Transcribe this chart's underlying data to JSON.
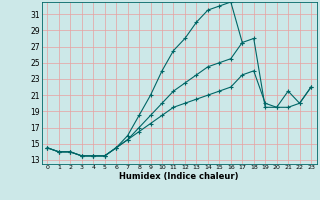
{
  "xlabel": "Humidex (Indice chaleur)",
  "bg_color": "#cce8e8",
  "grid_color": "#e8a0a0",
  "line_color": "#006666",
  "xlim": [
    -0.5,
    23.5
  ],
  "ylim": [
    12.5,
    32.5
  ],
  "yticks": [
    13,
    15,
    17,
    19,
    21,
    23,
    25,
    27,
    29,
    31
  ],
  "xticks": [
    0,
    1,
    2,
    3,
    4,
    5,
    6,
    7,
    8,
    9,
    10,
    11,
    12,
    13,
    14,
    15,
    16,
    17,
    18,
    19,
    20,
    21,
    22,
    23
  ],
  "line1_x": [
    0,
    1,
    2,
    3,
    4,
    5,
    6,
    7,
    8,
    9,
    10,
    11,
    12,
    13,
    14,
    15,
    16,
    17
  ],
  "line1_y": [
    14.5,
    14.0,
    14.0,
    13.5,
    13.5,
    13.5,
    14.5,
    16.0,
    18.5,
    21.0,
    24.0,
    26.5,
    28.0,
    30.0,
    31.5,
    32.0,
    32.5,
    27.5
  ],
  "line2_x": [
    0,
    1,
    2,
    3,
    4,
    5,
    6,
    7,
    8,
    9,
    10,
    11,
    12,
    13,
    14,
    15,
    16,
    17,
    18,
    19,
    20,
    21,
    22,
    23
  ],
  "line2_y": [
    14.5,
    14.0,
    14.0,
    13.5,
    13.5,
    13.5,
    14.5,
    15.5,
    17.0,
    18.5,
    20.0,
    21.5,
    22.5,
    23.5,
    24.5,
    25.0,
    25.5,
    27.5,
    28.0,
    19.5,
    19.5,
    21.5,
    20.0,
    22.0
  ],
  "line3_x": [
    0,
    1,
    2,
    3,
    4,
    5,
    6,
    7,
    8,
    9,
    10,
    11,
    12,
    13,
    14,
    15,
    16,
    17,
    18,
    19,
    20,
    21,
    22,
    23
  ],
  "line3_y": [
    14.5,
    14.0,
    14.0,
    13.5,
    13.5,
    13.5,
    14.5,
    15.5,
    16.5,
    17.5,
    18.5,
    19.5,
    20.0,
    20.5,
    21.0,
    21.5,
    22.0,
    23.5,
    24.0,
    20.0,
    19.5,
    19.5,
    20.0,
    22.0
  ]
}
